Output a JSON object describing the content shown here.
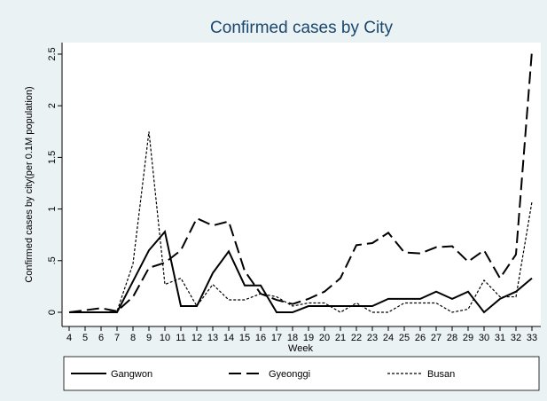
{
  "chart_data": {
    "type": "line",
    "title": "Confirmed cases by City",
    "xlabel": "Week",
    "ylabel": "Confirmed cases by city(per 0.1M population)",
    "x": [
      4,
      5,
      6,
      7,
      8,
      9,
      10,
      11,
      12,
      13,
      14,
      15,
      16,
      17,
      18,
      19,
      20,
      21,
      22,
      23,
      24,
      25,
      26,
      27,
      28,
      29,
      30,
      31,
      32,
      33
    ],
    "xlim": [
      4,
      33
    ],
    "xticks": [
      4,
      5,
      6,
      7,
      8,
      9,
      10,
      11,
      12,
      13,
      14,
      15,
      16,
      17,
      18,
      19,
      20,
      21,
      22,
      23,
      24,
      25,
      26,
      27,
      28,
      29,
      30,
      31,
      32,
      33
    ],
    "ylim": [
      0,
      2.5
    ],
    "yticks": [
      0,
      {
        "value": 0.5,
        "label": ".5"
      },
      1,
      1.5,
      2,
      2.5
    ],
    "series": [
      {
        "name": "Gangwon",
        "color": "#000000",
        "style": "solid",
        "values": [
          0,
          0,
          0,
          0,
          0.3,
          0.6,
          0.78,
          0.06,
          0.06,
          0.38,
          0.59,
          0.26,
          0.26,
          0,
          0,
          0.06,
          0.06,
          0.06,
          0.06,
          0.06,
          0.13,
          0.13,
          0.13,
          0.2,
          0.13,
          0.2,
          0,
          0.13,
          0.2,
          0.33
        ]
      },
      {
        "name": "Gyeonggi",
        "color": "#000000",
        "style": "longdash",
        "values": [
          0,
          0.02,
          0.04,
          0.01,
          0.15,
          0.43,
          0.48,
          0.6,
          0.91,
          0.84,
          0.88,
          0.4,
          0.18,
          0.12,
          0.08,
          0.13,
          0.2,
          0.33,
          0.65,
          0.67,
          0.77,
          0.58,
          0.57,
          0.63,
          0.64,
          0.49,
          0.6,
          0.33,
          0.56,
          2.53
        ]
      },
      {
        "name": "Busan",
        "color": "#000000",
        "style": "shortdash",
        "values": [
          0,
          0,
          0,
          0.01,
          0.47,
          1.75,
          0.27,
          0.33,
          0.06,
          0.27,
          0.12,
          0.12,
          0.18,
          0.15,
          0.06,
          0.09,
          0.09,
          0,
          0.09,
          0,
          0,
          0.09,
          0.09,
          0.09,
          0,
          0.03,
          0.31,
          0.15,
          0.15,
          1.07
        ]
      }
    ]
  }
}
